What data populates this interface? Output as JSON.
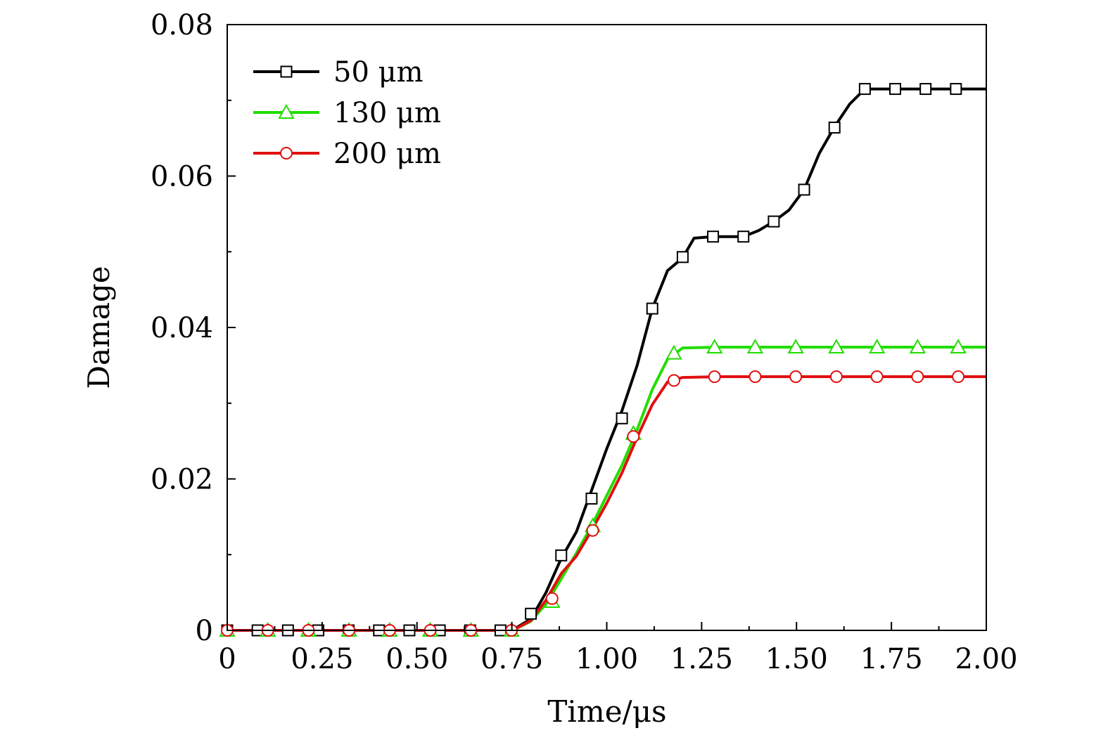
{
  "chart_data": {
    "type": "line",
    "xlabel": "Time/μs",
    "ylabel": "Damage",
    "xlim": [
      0,
      2.0
    ],
    "ylim": [
      0,
      0.08
    ],
    "x_ticks": [
      0,
      0.25,
      0.5,
      0.75,
      1.0,
      1.25,
      1.5,
      1.75,
      2.0
    ],
    "x_tick_labels": [
      "0",
      "0.25",
      "0.50",
      "0.75",
      "1.00",
      "1.25",
      "1.50",
      "1.75",
      "2.00"
    ],
    "y_ticks": [
      0,
      0.02,
      0.04,
      0.06,
      0.08
    ],
    "y_tick_labels": [
      "0",
      "0.02",
      "0.04",
      "0.06",
      "0.08"
    ],
    "grid": false,
    "legend_position": "top-left",
    "series": [
      {
        "name": "50 μm",
        "color": "#000000",
        "marker": "square",
        "line": [
          [
            0,
            0
          ],
          [
            0.7,
            0
          ],
          [
            0.76,
            0.0003
          ],
          [
            0.8,
            0.0015
          ],
          [
            0.84,
            0.005
          ],
          [
            0.88,
            0.0095
          ],
          [
            0.92,
            0.013
          ],
          [
            0.96,
            0.0185
          ],
          [
            1.0,
            0.024
          ],
          [
            1.04,
            0.029
          ],
          [
            1.08,
            0.035
          ],
          [
            1.12,
            0.0425
          ],
          [
            1.16,
            0.0475
          ],
          [
            1.2,
            0.0492
          ],
          [
            1.23,
            0.0518
          ],
          [
            1.28,
            0.052
          ],
          [
            1.36,
            0.052
          ],
          [
            1.4,
            0.0528
          ],
          [
            1.44,
            0.054
          ],
          [
            1.48,
            0.0555
          ],
          [
            1.52,
            0.0582
          ],
          [
            1.56,
            0.063
          ],
          [
            1.6,
            0.0665
          ],
          [
            1.64,
            0.0695
          ],
          [
            1.68,
            0.0715
          ],
          [
            2.0,
            0.0715
          ]
        ],
        "markers": [
          [
            0,
            0
          ],
          [
            0.08,
            0
          ],
          [
            0.16,
            0
          ],
          [
            0.24,
            0
          ],
          [
            0.32,
            0
          ],
          [
            0.4,
            0
          ],
          [
            0.48,
            0
          ],
          [
            0.56,
            0
          ],
          [
            0.64,
            0
          ],
          [
            0.72,
            0
          ],
          [
            0.8,
            0.0022
          ],
          [
            0.88,
            0.0099
          ],
          [
            0.96,
            0.0174
          ],
          [
            1.04,
            0.028
          ],
          [
            1.12,
            0.0425
          ],
          [
            1.2,
            0.0493
          ],
          [
            1.28,
            0.052
          ],
          [
            1.36,
            0.052
          ],
          [
            1.44,
            0.054
          ],
          [
            1.52,
            0.0582
          ],
          [
            1.6,
            0.0664
          ],
          [
            1.68,
            0.0715
          ],
          [
            1.76,
            0.0715
          ],
          [
            1.84,
            0.0715
          ],
          [
            1.92,
            0.0715
          ]
        ]
      },
      {
        "name": "130 μm",
        "color": "#22dd00",
        "marker": "triangle",
        "line": [
          [
            0,
            0
          ],
          [
            0.72,
            0
          ],
          [
            0.76,
            0.0002
          ],
          [
            0.8,
            0.0012
          ],
          [
            0.84,
            0.0035
          ],
          [
            0.88,
            0.0068
          ],
          [
            0.92,
            0.0102
          ],
          [
            0.96,
            0.0138
          ],
          [
            1.0,
            0.0178
          ],
          [
            1.04,
            0.0218
          ],
          [
            1.08,
            0.0265
          ],
          [
            1.12,
            0.0318
          ],
          [
            1.16,
            0.0358
          ],
          [
            1.2,
            0.0373
          ],
          [
            1.3,
            0.0374
          ],
          [
            2.0,
            0.0374
          ]
        ],
        "markers": [
          [
            0,
            0
          ],
          [
            0.107,
            0
          ],
          [
            0.214,
            0
          ],
          [
            0.321,
            0
          ],
          [
            0.428,
            0
          ],
          [
            0.535,
            0
          ],
          [
            0.642,
            0
          ],
          [
            0.749,
            0
          ],
          [
            0.856,
            0.0038
          ],
          [
            0.963,
            0.0138
          ],
          [
            1.07,
            0.026
          ],
          [
            1.177,
            0.0366
          ],
          [
            1.284,
            0.0374
          ],
          [
            1.391,
            0.0374
          ],
          [
            1.498,
            0.0374
          ],
          [
            1.605,
            0.0374
          ],
          [
            1.712,
            0.0374
          ],
          [
            1.819,
            0.0374
          ],
          [
            1.926,
            0.0374
          ]
        ]
      },
      {
        "name": "200 μm",
        "color": "#e01010",
        "marker": "circle",
        "line": [
          [
            0,
            0
          ],
          [
            0.72,
            0
          ],
          [
            0.76,
            0.0002
          ],
          [
            0.8,
            0.0013
          ],
          [
            0.84,
            0.004
          ],
          [
            0.88,
            0.0075
          ],
          [
            0.92,
            0.0098
          ],
          [
            0.96,
            0.0132
          ],
          [
            1.0,
            0.0168
          ],
          [
            1.04,
            0.0208
          ],
          [
            1.08,
            0.0255
          ],
          [
            1.12,
            0.0298
          ],
          [
            1.16,
            0.0328
          ],
          [
            1.2,
            0.0334
          ],
          [
            1.3,
            0.0335
          ],
          [
            2.0,
            0.0335
          ]
        ],
        "markers": [
          [
            0,
            0
          ],
          [
            0.107,
            0
          ],
          [
            0.214,
            0
          ],
          [
            0.321,
            0
          ],
          [
            0.428,
            0
          ],
          [
            0.535,
            0
          ],
          [
            0.642,
            0
          ],
          [
            0.749,
            0
          ],
          [
            0.856,
            0.0042
          ],
          [
            0.963,
            0.0132
          ],
          [
            1.07,
            0.0256
          ],
          [
            1.177,
            0.033
          ],
          [
            1.284,
            0.0335
          ],
          [
            1.391,
            0.0335
          ],
          [
            1.498,
            0.0335
          ],
          [
            1.605,
            0.0335
          ],
          [
            1.712,
            0.0335
          ],
          [
            1.819,
            0.0335
          ],
          [
            1.926,
            0.0335
          ]
        ]
      }
    ]
  }
}
